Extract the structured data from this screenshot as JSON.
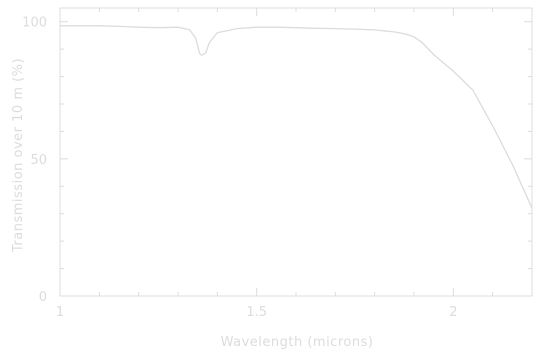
{
  "chart_data": {
    "type": "line",
    "title": "",
    "xlabel": "Wavelength (microns)",
    "ylabel": "Transmission over 10 m (%)",
    "xlim": [
      1.0,
      2.2
    ],
    "ylim": [
      0,
      105
    ],
    "x_ticks": [
      1,
      1.5,
      2
    ],
    "x_tick_labels": [
      "1",
      "1.5",
      "2"
    ],
    "y_ticks": [
      0,
      50,
      100
    ],
    "y_tick_labels": [
      "0",
      "50",
      "100"
    ],
    "grid": false,
    "colors": {
      "axis": "#dcdcdc",
      "line": "#dcdcdc",
      "text": "#dcdcdc"
    },
    "series": [
      {
        "x": [
          1.0,
          1.05,
          1.1,
          1.15,
          1.2,
          1.25,
          1.3,
          1.33,
          1.345,
          1.355,
          1.36,
          1.37,
          1.38,
          1.4,
          1.45,
          1.5,
          1.55,
          1.6,
          1.65,
          1.7,
          1.75,
          1.8,
          1.85,
          1.88,
          1.9,
          1.92,
          1.95,
          2.0,
          2.05,
          2.1,
          2.15,
          2.2
        ],
        "y": [
          98.5,
          98.5,
          98.5,
          98.3,
          98.0,
          97.8,
          98.0,
          97.0,
          94.0,
          88.5,
          87.8,
          88.5,
          92.5,
          96.0,
          97.5,
          98.0,
          98.0,
          97.8,
          97.6,
          97.5,
          97.3,
          97.0,
          96.3,
          95.5,
          94.5,
          92.5,
          88.0,
          82.0,
          75.0,
          62.0,
          48.0,
          32.0
        ]
      }
    ]
  }
}
